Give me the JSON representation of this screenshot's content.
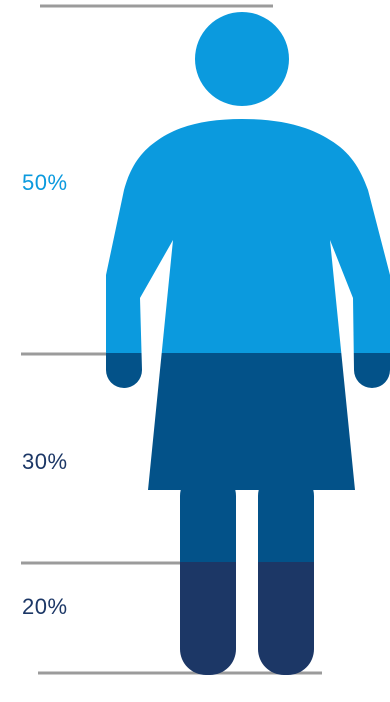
{
  "chart_data": {
    "type": "stacked-pictogram",
    "icon": "female-figure-icon",
    "segments": [
      {
        "label": "50%",
        "value": 50,
        "color": "#0b9ade",
        "label_color": "#0b9ade"
      },
      {
        "label": "30%",
        "value": 30,
        "color": "#035289",
        "label_color": "#1c3766"
      },
      {
        "label": "20%",
        "value": 20,
        "color": "#1c3766",
        "label_color": "#1c3766"
      }
    ],
    "divider_color": "#9b9b9b"
  }
}
